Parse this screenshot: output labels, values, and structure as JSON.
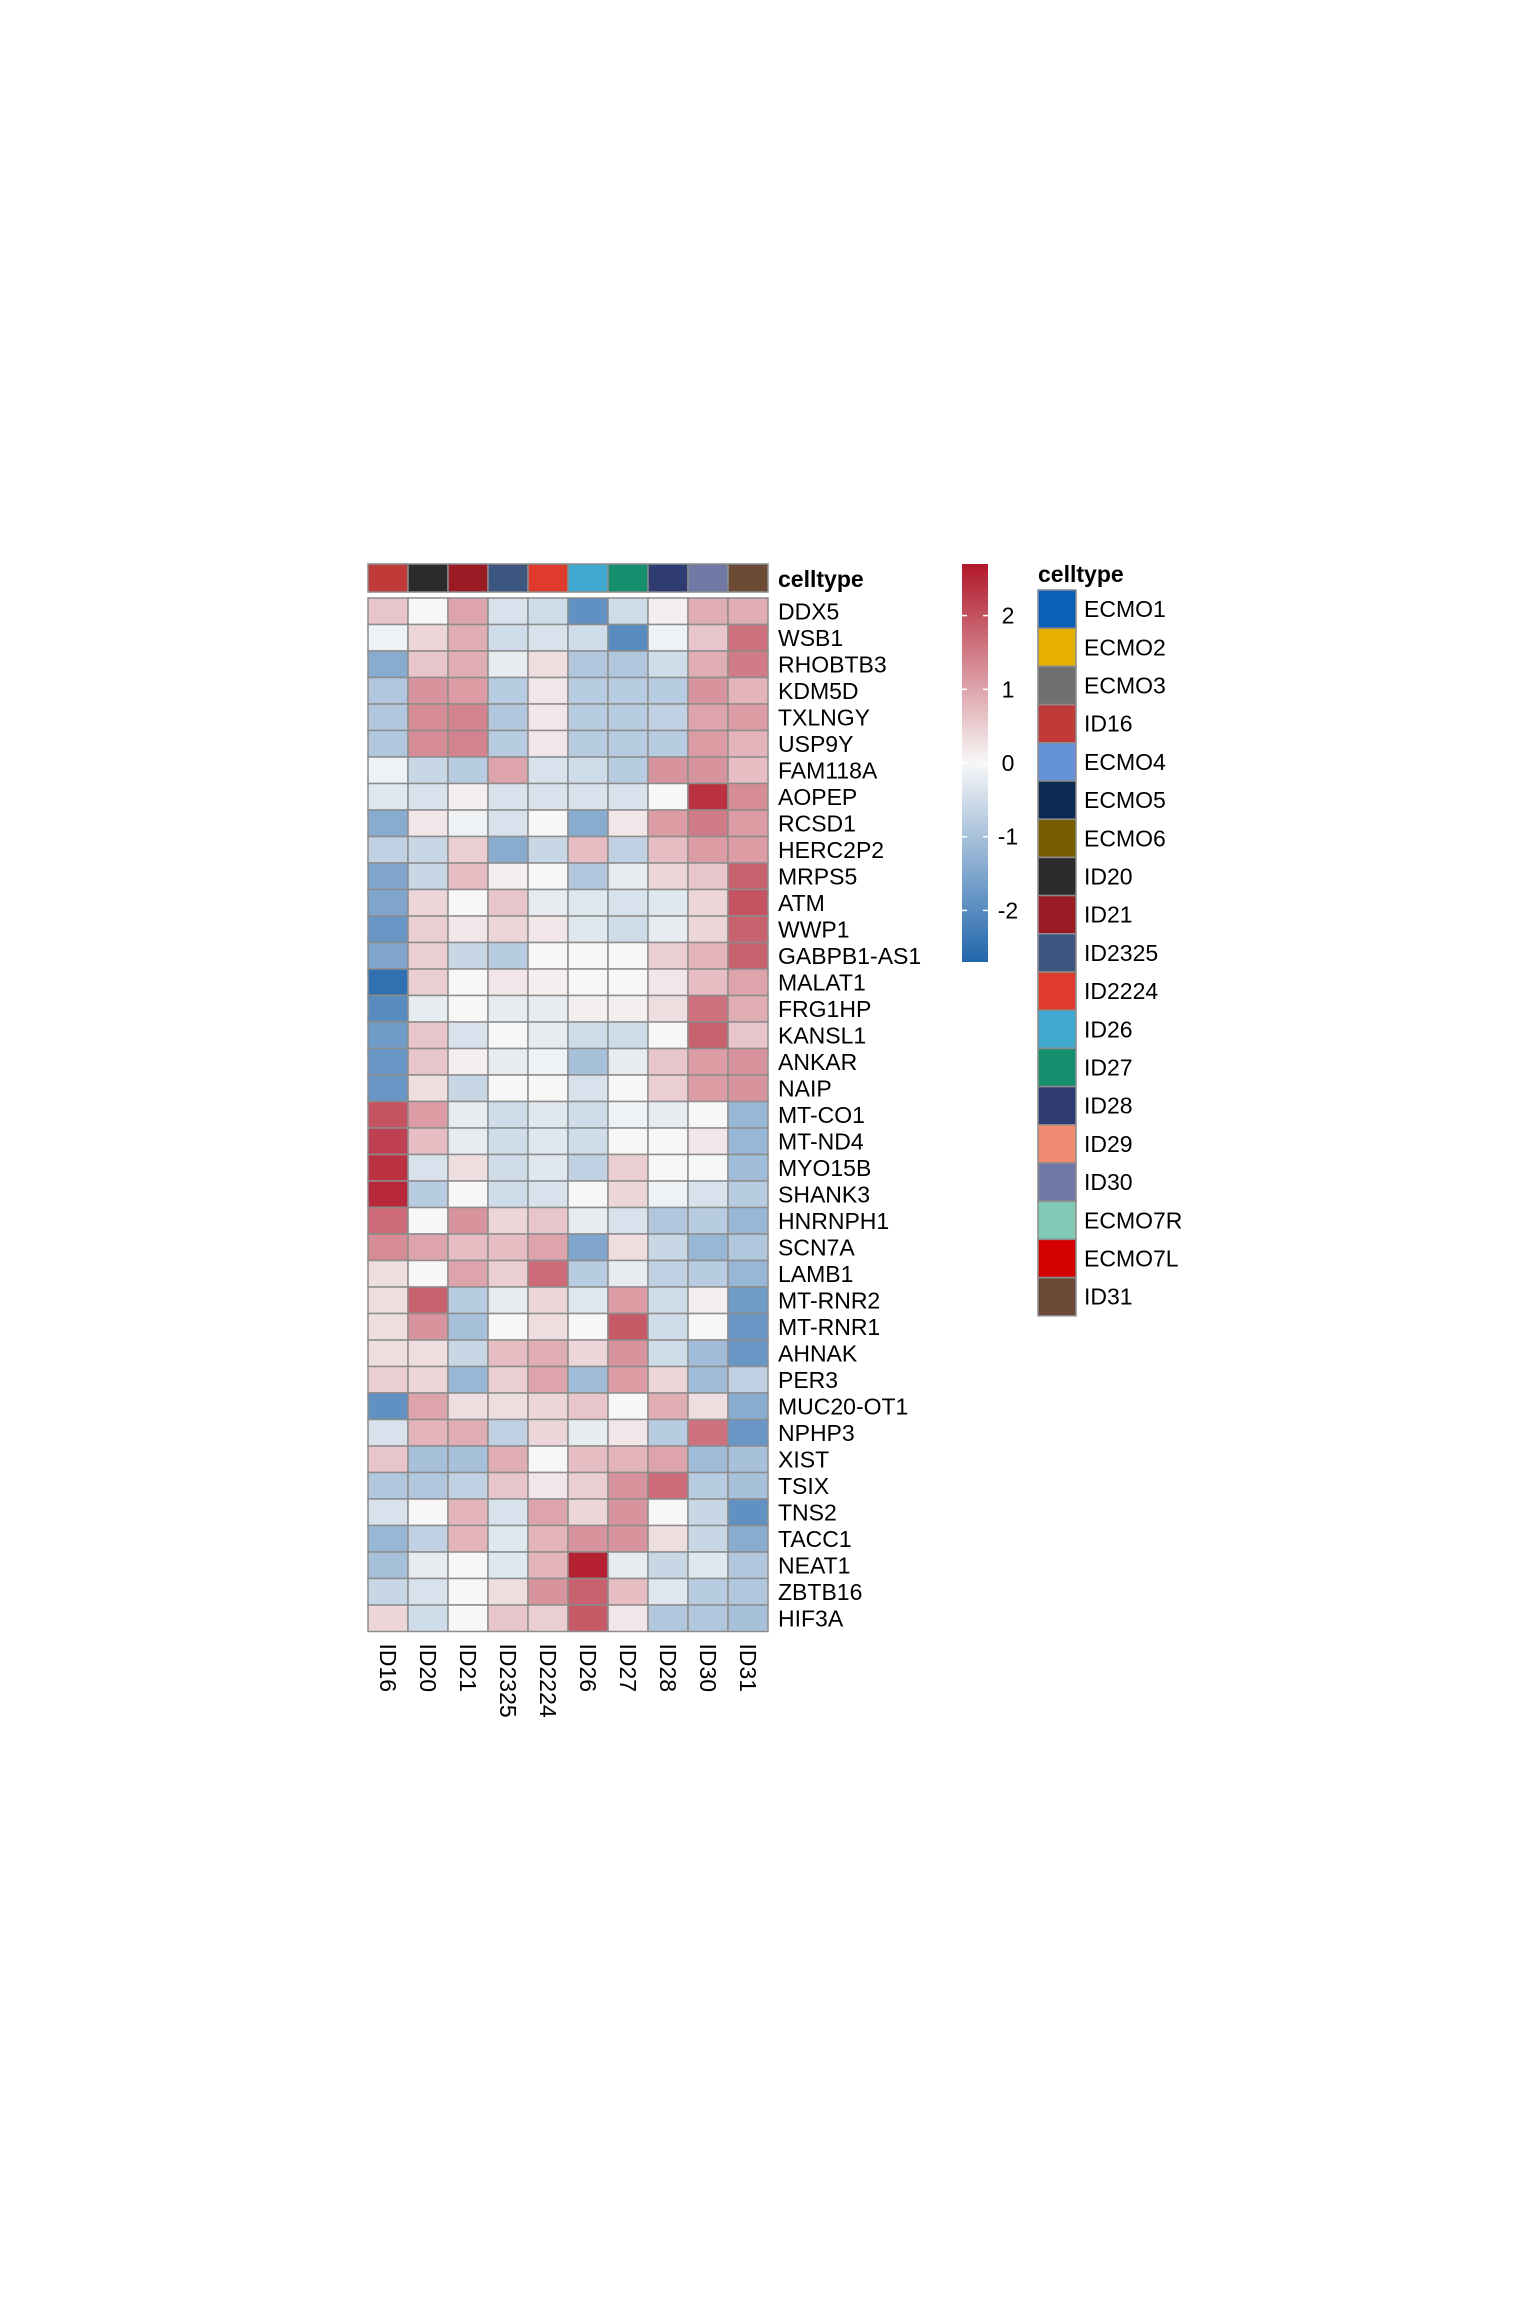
{
  "chart_data": {
    "type": "heatmap",
    "columns": [
      "ID16",
      "ID20",
      "ID21",
      "ID2325",
      "ID2224",
      "ID26",
      "ID27",
      "ID28",
      "ID30",
      "ID31"
    ],
    "rows": [
      "DDX5",
      "WSB1",
      "RHOBTB3",
      "KDM5D",
      "TXLNGY",
      "USP9Y",
      "FAM118A",
      "AOPEP",
      "RCSD1",
      "HERC2P2",
      "MRPS5",
      "ATM",
      "WWP1",
      "GABPB1-AS1",
      "MALAT1",
      "FRG1HP",
      "KANSL1",
      "ANKAR",
      "NAIP",
      "MT-CO1",
      "MT-ND4",
      "MYO15B",
      "SHANK3",
      "HNRNPH1",
      "SCN7A",
      "LAMB1",
      "MT-RNR2",
      "MT-RNR1",
      "AHNAK",
      "PER3",
      "MUC20-OT1",
      "NPHP3",
      "XIST",
      "TSIX",
      "TNS2",
      "TACC1",
      "NEAT1",
      "ZBTB16",
      "HIF3A"
    ],
    "values": [
      [
        0.6,
        0.0,
        1.0,
        -0.4,
        -0.5,
        -1.9,
        -0.5,
        0.1,
        0.9,
        0.9
      ],
      [
        -0.1,
        0.4,
        0.9,
        -0.5,
        -0.4,
        -0.5,
        -2.0,
        -0.1,
        0.6,
        1.6
      ],
      [
        -1.4,
        0.6,
        0.9,
        -0.2,
        0.3,
        -0.9,
        -0.9,
        -0.5,
        0.9,
        1.5
      ],
      [
        -0.9,
        1.2,
        1.1,
        -0.8,
        0.2,
        -0.8,
        -0.8,
        -0.8,
        1.2,
        0.8
      ],
      [
        -0.9,
        1.3,
        1.4,
        -0.9,
        0.2,
        -0.8,
        -0.8,
        -0.7,
        1.0,
        1.1
      ],
      [
        -0.9,
        1.3,
        1.4,
        -0.8,
        0.2,
        -0.8,
        -0.8,
        -0.8,
        1.1,
        0.8
      ],
      [
        -0.1,
        -0.6,
        -0.8,
        1.0,
        -0.4,
        -0.5,
        -0.8,
        1.2,
        1.2,
        0.7
      ],
      [
        -0.3,
        -0.4,
        0.1,
        -0.4,
        -0.4,
        -0.4,
        -0.4,
        0.0,
        2.4,
        1.3
      ],
      [
        -1.4,
        0.2,
        -0.1,
        -0.4,
        0.0,
        -1.4,
        0.2,
        1.1,
        1.5,
        1.1
      ],
      [
        -0.7,
        -0.6,
        0.5,
        -1.4,
        -0.6,
        0.7,
        -0.7,
        0.7,
        1.1,
        1.1
      ],
      [
        -1.5,
        -0.6,
        0.7,
        0.1,
        0.0,
        -0.9,
        -0.2,
        0.4,
        0.6,
        1.8
      ],
      [
        -1.5,
        0.4,
        0.0,
        0.6,
        -0.2,
        -0.3,
        -0.4,
        -0.3,
        0.4,
        2.0
      ],
      [
        -1.8,
        0.5,
        0.2,
        0.4,
        0.2,
        -0.3,
        -0.5,
        -0.2,
        0.4,
        1.8
      ],
      [
        -1.5,
        0.5,
        -0.6,
        -0.8,
        0.0,
        0.0,
        0.0,
        0.5,
        0.8,
        1.8
      ],
      [
        -2.5,
        0.5,
        0.0,
        0.2,
        0.1,
        0.0,
        0.0,
        0.2,
        0.7,
        1.0
      ],
      [
        -2.0,
        -0.2,
        0.0,
        -0.2,
        -0.2,
        0.1,
        0.1,
        0.3,
        1.6,
        0.9
      ],
      [
        -1.7,
        0.6,
        -0.4,
        0.0,
        -0.2,
        -0.5,
        -0.5,
        0.0,
        1.8,
        0.6
      ],
      [
        -1.8,
        0.6,
        0.1,
        -0.2,
        -0.1,
        -1.0,
        -0.2,
        0.6,
        1.1,
        1.2
      ],
      [
        -1.8,
        0.3,
        -0.6,
        0.0,
        0.0,
        -0.4,
        0.0,
        0.5,
        1.1,
        1.2
      ],
      [
        2.0,
        1.1,
        -0.2,
        -0.5,
        -0.3,
        -0.5,
        -0.1,
        -0.2,
        0.0,
        -1.2
      ],
      [
        2.2,
        0.7,
        -0.2,
        -0.5,
        -0.3,
        -0.5,
        0.0,
        0.0,
        0.2,
        -1.2
      ],
      [
        2.4,
        -0.4,
        0.3,
        -0.5,
        -0.3,
        -0.7,
        0.5,
        0.0,
        0.0,
        -1.1
      ],
      [
        2.5,
        -0.8,
        0.0,
        -0.5,
        -0.4,
        0.0,
        0.4,
        -0.1,
        -0.4,
        -0.8
      ],
      [
        1.7,
        0.0,
        1.2,
        0.4,
        0.6,
        -0.2,
        -0.4,
        -0.9,
        -0.8,
        -1.2
      ],
      [
        1.3,
        1.0,
        0.7,
        0.7,
        1.0,
        -1.5,
        0.3,
        -0.6,
        -1.2,
        -0.9
      ],
      [
        0.3,
        0.0,
        1.0,
        0.5,
        1.7,
        -0.8,
        -0.2,
        -0.7,
        -0.8,
        -1.2
      ],
      [
        0.3,
        1.8,
        -0.8,
        -0.2,
        0.4,
        -0.3,
        1.1,
        -0.5,
        0.1,
        -1.7
      ],
      [
        0.3,
        1.2,
        -1.0,
        0.0,
        0.3,
        0.0,
        1.9,
        -0.5,
        0.0,
        -1.8
      ],
      [
        0.3,
        0.3,
        -0.6,
        0.7,
        0.9,
        0.4,
        1.2,
        -0.5,
        -1.1,
        -1.8
      ],
      [
        0.5,
        0.4,
        -1.2,
        0.5,
        1.0,
        -1.1,
        1.1,
        0.4,
        -1.1,
        -0.7
      ],
      [
        -1.9,
        1.0,
        0.3,
        0.3,
        0.4,
        0.6,
        0.0,
        0.9,
        0.3,
        -1.4
      ],
      [
        -0.4,
        0.8,
        0.9,
        -0.7,
        0.4,
        -0.2,
        0.2,
        -0.8,
        1.6,
        -1.8
      ],
      [
        0.6,
        -1.0,
        -1.0,
        0.9,
        0.0,
        0.7,
        0.8,
        1.0,
        -1.1,
        -1.0
      ],
      [
        -0.9,
        -0.9,
        -0.7,
        0.6,
        0.2,
        0.5,
        1.2,
        1.7,
        -0.8,
        -1.0
      ],
      [
        -0.4,
        0.0,
        0.8,
        -0.4,
        1.0,
        0.4,
        1.2,
        0.0,
        -0.6,
        -1.9
      ],
      [
        -1.2,
        -0.7,
        0.8,
        -0.3,
        0.8,
        1.2,
        1.2,
        0.3,
        -0.6,
        -1.4
      ],
      [
        -1.0,
        -0.2,
        0.0,
        -0.3,
        0.8,
        2.6,
        -0.2,
        -0.6,
        -0.3,
        -0.9
      ],
      [
        -0.6,
        -0.4,
        0.0,
        0.3,
        1.2,
        1.8,
        0.7,
        -0.3,
        -0.8,
        -0.9
      ],
      [
        0.4,
        -0.5,
        0.0,
        0.6,
        0.5,
        1.9,
        0.2,
        -0.9,
        -0.9,
        -1.0
      ]
    ],
    "annotation": {
      "title": "celltype",
      "column_colors": [
        "#c03a3a",
        "#2b2b2b",
        "#9a1b24",
        "#3c5680",
        "#df3b2d",
        "#3fa9cf",
        "#168f6e",
        "#2f3c74",
        "#7078a6",
        "#6b4a35"
      ]
    },
    "color_scale": {
      "min": -2.7,
      "max": 2.7,
      "low_color": "#2166ac",
      "mid_color": "#f7f7f7",
      "high_color": "#b2182b",
      "ticks": [
        2,
        1,
        0,
        -1,
        -2
      ],
      "tick_labels": [
        "2",
        "1",
        "0",
        "-1",
        "-2"
      ]
    },
    "legend": {
      "title": "celltype",
      "entries": [
        {
          "label": "ECMO1",
          "color": "#0b5fb8"
        },
        {
          "label": "ECMO2",
          "color": "#e6b000"
        },
        {
          "label": "ECMO3",
          "color": "#707070"
        },
        {
          "label": "ID16",
          "color": "#c03a3a"
        },
        {
          "label": "ECMO4",
          "color": "#6693d8"
        },
        {
          "label": "ECMO5",
          "color": "#0b2a52"
        },
        {
          "label": "ECMO6",
          "color": "#7a5c00"
        },
        {
          "label": "ID20",
          "color": "#2b2b2b"
        },
        {
          "label": "ID21",
          "color": "#9a1b24"
        },
        {
          "label": "ID2325",
          "color": "#3c5680"
        },
        {
          "label": "ID2224",
          "color": "#df3b2d"
        },
        {
          "label": "ID26",
          "color": "#3fa9cf"
        },
        {
          "label": "ID27",
          "color": "#168f6e"
        },
        {
          "label": "ID28",
          "color": "#2f3c74"
        },
        {
          "label": "ID29",
          "color": "#f08a70"
        },
        {
          "label": "ID30",
          "color": "#7078a6"
        },
        {
          "label": "ECMO7R",
          "color": "#82c9b5"
        },
        {
          "label": "ECMO7L",
          "color": "#d40000"
        },
        {
          "label": "ID31",
          "color": "#6b4a35"
        }
      ]
    }
  }
}
